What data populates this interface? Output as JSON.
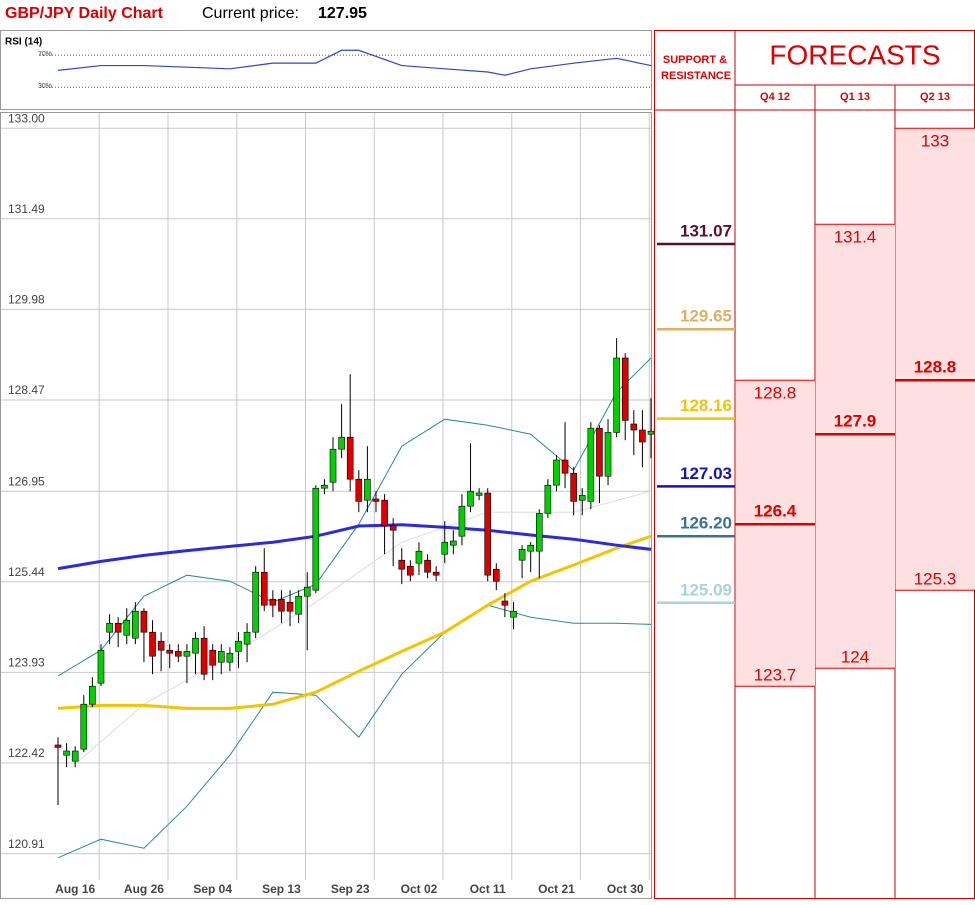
{
  "title": "GBP/JPY Daily Chart",
  "price_label": "Current price:",
  "price": 127.95,
  "chart_data": [
    {
      "type": "line",
      "title": "RSI (14)",
      "color": "#3344cc",
      "ylim": [
        8,
        95
      ],
      "yticks": [
        {
          "value": 30,
          "label": "30%"
        },
        {
          "value": 70,
          "label": "70%"
        }
      ],
      "x": [
        0,
        5,
        10,
        15,
        20,
        25,
        30,
        33,
        35,
        40,
        45,
        50,
        52,
        55,
        60,
        65,
        69
      ],
      "values": [
        51,
        57,
        57,
        55,
        53,
        60,
        60,
        76,
        76,
        57,
        53,
        49,
        45,
        53,
        60,
        66,
        57
      ]
    },
    {
      "type": "candlestick",
      "up_color": "#00d000",
      "down_color": "#dd0000",
      "ylim": [
        120.47,
        133.27
      ],
      "yticks": [
        {
          "value": 133,
          "label": "133.00"
        },
        131.49,
        129.98,
        128.47,
        126.95,
        125.44,
        123.93,
        122.42,
        120.91
      ],
      "categories": [
        null,
        null,
        "Aug 16",
        null,
        null,
        null,
        null,
        null,
        null,
        null,
        "Aug 26",
        null,
        null,
        null,
        null,
        null,
        null,
        null,
        "Sep 04",
        null,
        null,
        null,
        null,
        null,
        null,
        null,
        "Sep 13",
        null,
        null,
        null,
        null,
        null,
        null,
        null,
        "Sep 23",
        null,
        null,
        null,
        null,
        null,
        null,
        null,
        "Oct 02",
        null,
        null,
        null,
        null,
        null,
        null,
        null,
        "Oct 11",
        null,
        null,
        null,
        null,
        null,
        null,
        null,
        "Oct 21",
        null,
        null,
        null,
        null,
        null,
        null,
        null,
        "Oct 30",
        null,
        null,
        null
      ],
      "open": [
        122.72,
        122.55,
        122.45,
        122.65,
        123.4,
        123.75,
        124.6,
        124.75,
        124.55,
        124.5,
        124.95,
        124.6,
        124.45,
        124.3,
        124.28,
        124.2,
        124.25,
        124.5,
        124.3,
        124.1,
        124.1,
        124.28,
        124.4,
        124.6,
        125.6,
        125.15,
        125.15,
        125.1,
        124.9,
        125.2,
        125.3,
        127.0,
        127.1,
        127.65,
        127.85,
        127.15,
        126.8,
        126.82,
        126.8,
        126.38,
        125.8,
        125.7,
        125.75,
        125.8,
        125.6,
        125.9,
        126.05,
        126.2,
        126.7,
        126.88,
        126.92,
        125.65,
        125.12,
        124.85,
        125.8,
        125.95,
        125.95,
        126.58,
        127.05,
        127.47,
        127.25,
        126.8,
        126.78,
        128.0,
        127.2,
        127.93,
        129.17,
        128.07,
        127.97,
        127.9
      ],
      "close": [
        122.68,
        122.62,
        122.62,
        123.4,
        123.7,
        124.3,
        124.75,
        124.6,
        124.8,
        124.95,
        124.6,
        124.2,
        124.3,
        124.25,
        124.2,
        124.28,
        124.5,
        123.9,
        124.05,
        124.28,
        124.25,
        124.45,
        124.6,
        125.6,
        125.05,
        125.05,
        124.95,
        124.95,
        125.2,
        125.35,
        127.0,
        127.05,
        127.65,
        127.85,
        127.15,
        126.78,
        127.15,
        126.78,
        126.37,
        126.3,
        125.65,
        125.55,
        125.95,
        125.6,
        125.55,
        126.1,
        126.12,
        126.7,
        126.95,
        126.92,
        125.55,
        125.45,
        125.05,
        124.95,
        125.98,
        126.05,
        126.58,
        127.05,
        127.47,
        127.25,
        126.78,
        126.88,
        128.0,
        127.2,
        127.93,
        129.17,
        128.13,
        127.97,
        127.77,
        127.95
      ],
      "high": [
        122.85,
        122.75,
        122.7,
        123.55,
        123.85,
        124.4,
        124.9,
        124.85,
        125.0,
        125.1,
        125.0,
        124.8,
        124.6,
        124.4,
        124.4,
        124.4,
        124.6,
        124.7,
        124.4,
        124.4,
        124.35,
        124.6,
        124.75,
        125.7,
        126.0,
        125.3,
        125.3,
        125.3,
        125.3,
        125.6,
        127.05,
        127.15,
        127.85,
        128.4,
        128.9,
        127.3,
        127.7,
        126.95,
        126.9,
        126.5,
        126.0,
        125.8,
        126.1,
        125.9,
        125.7,
        126.45,
        126.3,
        126.9,
        127.75,
        127.0,
        127.0,
        125.75,
        125.25,
        125.1,
        126.05,
        126.1,
        126.65,
        127.15,
        127.55,
        128.1,
        127.35,
        127.0,
        128.1,
        128.05,
        128.15,
        129.5,
        129.25,
        128.3,
        128.3,
        128.5
      ],
      "low": [
        121.72,
        122.35,
        122.35,
        122.6,
        123.35,
        123.7,
        124.4,
        124.35,
        124.4,
        124.4,
        124.1,
        123.9,
        123.95,
        124.0,
        124.1,
        123.75,
        123.9,
        123.8,
        123.8,
        123.9,
        123.95,
        124.0,
        124.1,
        124.5,
        124.95,
        124.85,
        124.75,
        124.7,
        124.75,
        124.3,
        125.25,
        126.9,
        126.95,
        127.5,
        126.95,
        126.6,
        126.6,
        126.6,
        125.9,
        125.7,
        125.4,
        125.45,
        125.55,
        125.5,
        125.45,
        125.75,
        125.9,
        126.05,
        126.6,
        126.8,
        125.45,
        125.3,
        124.85,
        124.65,
        125.5,
        125.6,
        125.5,
        126.5,
        126.95,
        127.0,
        126.55,
        126.55,
        126.65,
        126.75,
        127.05,
        127.85,
        127.8,
        127.55,
        127.35,
        127.5
      ],
      "overlays": [
        {
          "color": "#dddddd",
          "width": 1,
          "x": [
            2,
            10,
            20,
            30,
            40,
            50,
            60,
            69
          ],
          "values": [
            122.4,
            123.4,
            124.2,
            125.1,
            126.1,
            126.6,
            126.6,
            126.95
          ]
        },
        {
          "color": "#2a8c8c",
          "width": 1,
          "x": [
            0,
            5,
            10,
            15,
            20,
            25,
            30,
            35,
            40,
            45,
            50,
            55,
            60,
            65,
            69
          ],
          "values": [
            123.87,
            124.3,
            125.2,
            125.55,
            125.45,
            125.1,
            125.4,
            126.4,
            127.7,
            128.15,
            128.05,
            127.9,
            127.3,
            128.6,
            129.17
          ]
        },
        {
          "color": "#2a8c8c",
          "width": 1,
          "x": [
            0,
            5,
            10,
            15,
            20,
            25,
            30,
            35,
            40,
            45,
            50,
            55,
            60,
            65,
            69
          ],
          "values": [
            120.84,
            121.15,
            121.0,
            121.7,
            122.55,
            123.6,
            123.55,
            122.85,
            123.9,
            124.6,
            125.05,
            124.85,
            124.75,
            124.75,
            124.73
          ]
        },
        {
          "color": "#f5c400",
          "width": 3,
          "x": [
            0,
            5,
            10,
            15,
            20,
            25,
            30,
            35,
            40,
            45,
            50,
            55,
            60,
            65,
            69
          ],
          "values": [
            123.33,
            123.38,
            123.38,
            123.33,
            123.33,
            123.4,
            123.6,
            123.95,
            124.28,
            124.6,
            125.05,
            125.45,
            125.72,
            126.0,
            126.2
          ]
        },
        {
          "color": "#2a2ae0",
          "width": 3,
          "x": [
            0,
            5,
            10,
            15,
            20,
            25,
            30,
            35,
            40,
            45,
            50,
            55,
            60,
            65,
            69
          ],
          "values": [
            125.66,
            125.78,
            125.88,
            125.96,
            126.03,
            126.1,
            126.2,
            126.37,
            126.39,
            126.35,
            126.3,
            126.22,
            126.15,
            126.05,
            125.98
          ]
        }
      ]
    },
    {
      "type": "levels",
      "title": "SUPPORT & RESISTANCE",
      "values": [
        131.07,
        129.65,
        128.16,
        127.03,
        {
          "value": 126.2,
          "label": "126.20"
        },
        125.09
      ],
      "colors": [
        "#5a0f2a",
        "#e0b060",
        "#f5c400",
        "#1515b0",
        "#3a7099",
        "#a8d4d4"
      ]
    },
    {
      "type": "forecast",
      "title": "FORECASTS",
      "color": "#dd0000",
      "fill": "#ffe0e0",
      "categories": [
        "Q4 12",
        "Q1 13",
        "Q2 13"
      ],
      "high": [
        128.8,
        131.4,
        133
      ],
      "mid": [
        126.4,
        127.9,
        128.8
      ],
      "low": [
        123.7,
        124,
        125.3
      ]
    }
  ]
}
